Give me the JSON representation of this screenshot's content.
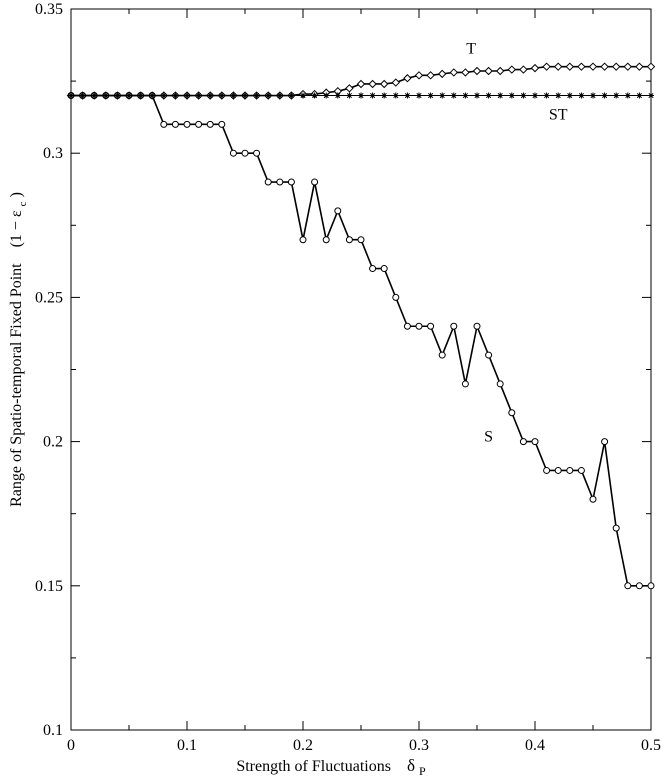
{
  "chart_data": {
    "type": "line",
    "title": "",
    "xlabel": "Strength of Fluctuations",
    "xlabel_symbol": "δ",
    "xlabel_subscript": "P",
    "ylabel": "Range of Spatio-temporal Fixed Point",
    "ylabel_expr": "(1 − ε",
    "ylabel_expr_sub": "c",
    "ylabel_expr_close": ")",
    "xlim": [
      0,
      0.5
    ],
    "ylim": [
      0.1,
      0.35
    ],
    "grid": false,
    "x_ticks": [
      0,
      0.1,
      0.2,
      0.3,
      0.4,
      0.5
    ],
    "x_tick_labels": [
      "0",
      "0.1",
      "0.2",
      "0.3",
      "0.4",
      "0.5"
    ],
    "y_ticks": [
      0.1,
      0.15,
      0.2,
      0.25,
      0.3,
      0.35
    ],
    "y_tick_labels": [
      "0.1",
      "0.15",
      "0.2",
      "0.25",
      "0.3",
      "0.35"
    ],
    "series": [
      {
        "name": "S",
        "marker": "circle",
        "color": "#000000",
        "x": [
          0,
          0.01,
          0.02,
          0.03,
          0.04,
          0.05,
          0.06,
          0.07,
          0.08,
          0.09,
          0.1,
          0.11,
          0.12,
          0.13,
          0.14,
          0.15,
          0.16,
          0.17,
          0.18,
          0.19,
          0.2,
          0.21,
          0.22,
          0.23,
          0.24,
          0.25,
          0.26,
          0.27,
          0.28,
          0.29,
          0.3,
          0.31,
          0.32,
          0.33,
          0.34,
          0.35,
          0.36,
          0.37,
          0.38,
          0.39,
          0.4,
          0.41,
          0.42,
          0.43,
          0.44,
          0.45,
          0.46,
          0.47,
          0.48,
          0.49,
          0.5
        ],
        "y": [
          0.32,
          0.32,
          0.32,
          0.32,
          0.32,
          0.32,
          0.32,
          0.32,
          0.31,
          0.31,
          0.31,
          0.31,
          0.31,
          0.31,
          0.3,
          0.3,
          0.3,
          0.29,
          0.29,
          0.29,
          0.27,
          0.29,
          0.27,
          0.28,
          0.27,
          0.27,
          0.26,
          0.26,
          0.25,
          0.24,
          0.24,
          0.24,
          0.23,
          0.24,
          0.22,
          0.24,
          0.23,
          0.22,
          0.21,
          0.2,
          0.2,
          0.19,
          0.19,
          0.19,
          0.19,
          0.18,
          0.2,
          0.17,
          0.15,
          0.15,
          0.15
        ]
      },
      {
        "name": "T",
        "marker": "diamond",
        "color": "#000000",
        "x": [
          0,
          0.01,
          0.02,
          0.03,
          0.04,
          0.05,
          0.06,
          0.07,
          0.08,
          0.09,
          0.1,
          0.11,
          0.12,
          0.13,
          0.14,
          0.15,
          0.16,
          0.17,
          0.18,
          0.19,
          0.2,
          0.21,
          0.22,
          0.23,
          0.24,
          0.25,
          0.26,
          0.27,
          0.28,
          0.29,
          0.3,
          0.31,
          0.32,
          0.33,
          0.34,
          0.35,
          0.36,
          0.37,
          0.38,
          0.39,
          0.4,
          0.41,
          0.42,
          0.43,
          0.44,
          0.45,
          0.46,
          0.47,
          0.48,
          0.49,
          0.5
        ],
        "y": [
          0.32,
          0.32,
          0.32,
          0.32,
          0.32,
          0.32,
          0.32,
          0.32,
          0.32,
          0.32,
          0.32,
          0.32,
          0.32,
          0.32,
          0.32,
          0.32,
          0.32,
          0.32,
          0.32,
          0.32,
          0.3205,
          0.3205,
          0.321,
          0.3215,
          0.3225,
          0.324,
          0.324,
          0.324,
          0.3245,
          0.326,
          0.327,
          0.327,
          0.3275,
          0.328,
          0.328,
          0.3285,
          0.3285,
          0.3285,
          0.329,
          0.329,
          0.3295,
          0.33,
          0.33,
          0.33,
          0.33,
          0.33,
          0.33,
          0.33,
          0.33,
          0.33,
          0.33
        ]
      },
      {
        "name": "ST",
        "marker": "star",
        "color": "#000000",
        "x": [
          0,
          0.01,
          0.02,
          0.03,
          0.04,
          0.05,
          0.06,
          0.07,
          0.08,
          0.09,
          0.1,
          0.11,
          0.12,
          0.13,
          0.14,
          0.15,
          0.16,
          0.17,
          0.18,
          0.19,
          0.2,
          0.21,
          0.22,
          0.23,
          0.24,
          0.25,
          0.26,
          0.27,
          0.28,
          0.29,
          0.3,
          0.31,
          0.32,
          0.33,
          0.34,
          0.35,
          0.36,
          0.37,
          0.38,
          0.39,
          0.4,
          0.41,
          0.42,
          0.43,
          0.44,
          0.45,
          0.46,
          0.47,
          0.48,
          0.49,
          0.5
        ],
        "y": [
          0.32,
          0.32,
          0.32,
          0.32,
          0.32,
          0.32,
          0.32,
          0.32,
          0.32,
          0.32,
          0.32,
          0.32,
          0.32,
          0.32,
          0.32,
          0.32,
          0.32,
          0.32,
          0.32,
          0.32,
          0.32,
          0.32,
          0.32,
          0.32,
          0.32,
          0.32,
          0.32,
          0.32,
          0.32,
          0.32,
          0.32,
          0.32,
          0.32,
          0.32,
          0.32,
          0.32,
          0.32,
          0.32,
          0.32,
          0.32,
          0.32,
          0.32,
          0.32,
          0.32,
          0.32,
          0.32,
          0.32,
          0.32,
          0.32,
          0.32,
          0.32
        ]
      }
    ],
    "annotations": [
      {
        "text": "T",
        "x": 0.345,
        "y": 0.3345
      },
      {
        "text": "ST",
        "x": 0.42,
        "y": 0.3116
      },
      {
        "text": "S",
        "x": 0.36,
        "y": 0.2
      }
    ]
  }
}
